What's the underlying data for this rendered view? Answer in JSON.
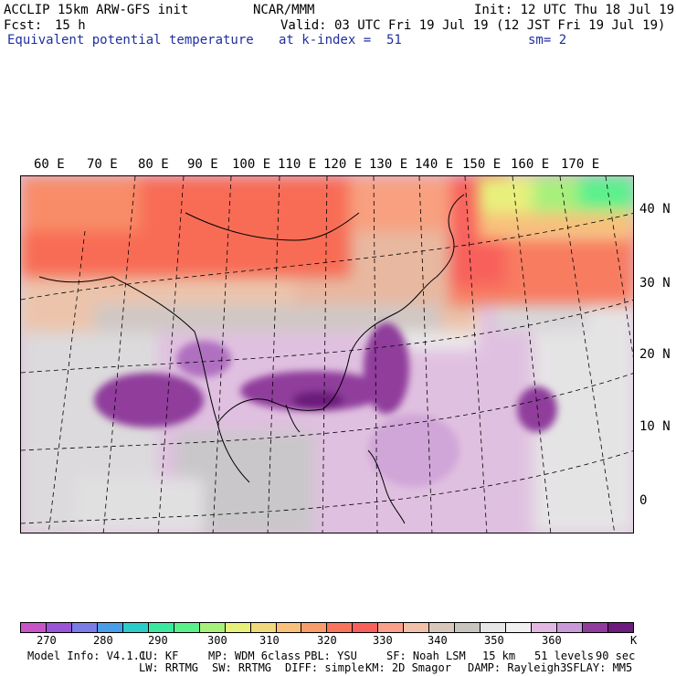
{
  "header": {
    "model": "ACCLIP 15km ARW-GFS init",
    "org": "NCAR/MMM",
    "init": "Init: 12 UTC Thu 18 Jul 19",
    "fcst_label": "Fcst:",
    "fcst_value": "15 h",
    "valid": "Valid: 03 UTC Fri 19 Jul 19 (12 JST Fri 19 Jul 19)",
    "field": "Equivalent potential temperature",
    "level": "at k-index =  51",
    "smoothing": "sm= 2"
  },
  "map": {
    "lon_labels": [
      "60 E",
      "70 E",
      "80 E",
      "90 E",
      "100 E",
      "110 E",
      "120 E",
      "130 E",
      "140 E",
      "150 E",
      "160 E",
      "170 E"
    ],
    "lat_labels": [
      "40 N",
      "30 N",
      "20 N",
      "10 N",
      "0"
    ]
  },
  "colorbar": {
    "colors": [
      "#c855c8",
      "#9a55d6",
      "#7c7ce6",
      "#4a9ee8",
      "#2ccdc8",
      "#3ce8a0",
      "#5cf08c",
      "#a8f07c",
      "#e8f07c",
      "#f0d87c",
      "#f8c07c",
      "#f89c6c",
      "#f8745c",
      "#f8605c",
      "#f8a08c",
      "#f0c0a8",
      "#d8c8bc",
      "#c8c4c0",
      "#e6e6e6",
      "#f0f0f0",
      "#e0b8e0",
      "#c89ad8",
      "#903c9c",
      "#6c1c7c"
    ],
    "ticks": [
      "270",
      "280",
      "290",
      "300",
      "310",
      "320",
      "330",
      "340",
      "350",
      "360"
    ],
    "unit": "K"
  },
  "footer": {
    "line1": [
      "Model Info: V4.1.1",
      "CU: KF",
      "MP: WDM 6class",
      "PBL: YSU",
      "SF: Noah LSM",
      "15 km",
      "51 levels",
      "90 sec"
    ],
    "line2": [
      "LW: RRTMG",
      "SW: RRTMG",
      "DIFF: simple",
      "KM: 2D Smagor",
      "DAMP: Rayleigh3",
      "SFLAY: MM5"
    ]
  }
}
